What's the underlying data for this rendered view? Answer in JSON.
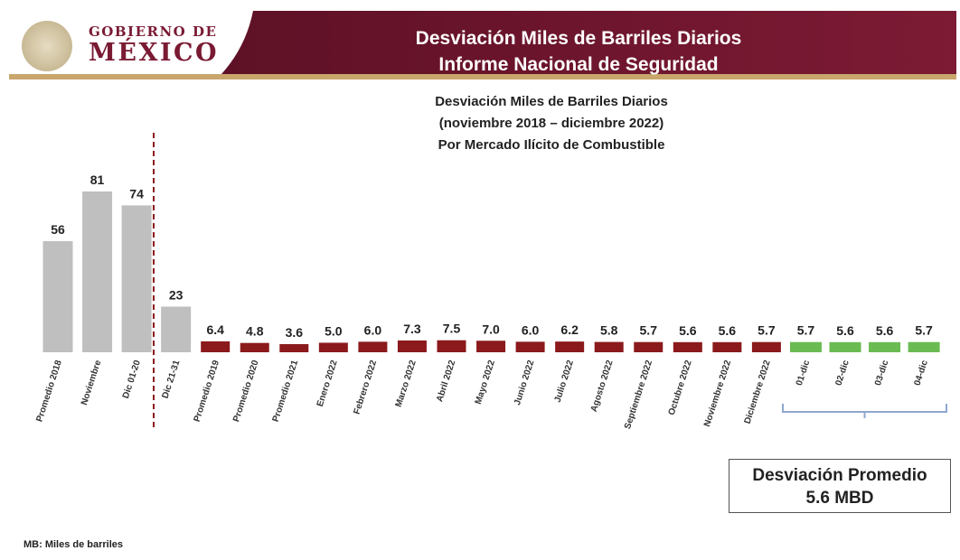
{
  "header": {
    "logo_line1": "GOBIERNO DE",
    "logo_line2": "MÉXICO",
    "title_line1": "Desviación Miles de Barriles Diarios",
    "title_line2": "Informe Nacional de Seguridad"
  },
  "colors": {
    "header_red": "#74162f",
    "gold_rule": "#c9a66b",
    "gray_bar": "#bfbfbf",
    "red_bar": "#8b1a1c",
    "green_bar": "#6abb52",
    "dashed_line": "#8b1a1c",
    "bracket": "#8fa7cf"
  },
  "chart_data": {
    "type": "bar",
    "title": "Desviación Miles de Barriles Diarios",
    "subtitle": "(noviembre 2018 – diciembre 2022)",
    "subtitle2": "Por Mercado Ilícito de Combustible",
    "xlabel": "",
    "ylabel": "",
    "ylim": [
      0,
      81
    ],
    "grid": false,
    "legend": "none",
    "categories": [
      "Promedio 2018",
      "Noviembre",
      "Dic  01-20",
      "Dic 21-31",
      "Promedio 2019",
      "Promedio 2020",
      "Promedio 2021",
      "Enero 2022",
      "Febrero 2022",
      "Marzo 2022",
      "Abril 2022",
      "Mayo 2022",
      "Junio 2022",
      "Julio 2022",
      "Agosto 2022",
      "Septiembre 2022",
      "Octubre 2022",
      "Noviembre 2022",
      "Diciembre 2022",
      "01-dic",
      "02-dic",
      "03-dic",
      "04-dic"
    ],
    "values": [
      56,
      81,
      74,
      23,
      6.4,
      4.8,
      3.6,
      5.0,
      6.0,
      7.3,
      7.5,
      7.0,
      6.0,
      6.2,
      5.8,
      5.7,
      5.6,
      5.6,
      5.7,
      5.7,
      5.6,
      5.6,
      5.7
    ],
    "value_labels": [
      "56",
      "81",
      "74",
      "23",
      "6.4",
      "4.8",
      "3.6",
      "5.0",
      "6.0",
      "7.3",
      "7.5",
      "7.0",
      "6.0",
      "6.2",
      "5.8",
      "5.7",
      "5.6",
      "5.6",
      "5.7",
      "5.7",
      "5.6",
      "5.6",
      "5.7"
    ],
    "bar_groups": [
      "gray",
      "gray",
      "gray",
      "gray",
      "red",
      "red",
      "red",
      "red",
      "red",
      "red",
      "red",
      "red",
      "red",
      "red",
      "red",
      "red",
      "red",
      "red",
      "red",
      "green",
      "green",
      "green",
      "green"
    ]
  },
  "summary": {
    "line1": "Desviación Promedio",
    "line2": "5.6 MBD"
  },
  "footnote": "MB: Miles de barriles"
}
